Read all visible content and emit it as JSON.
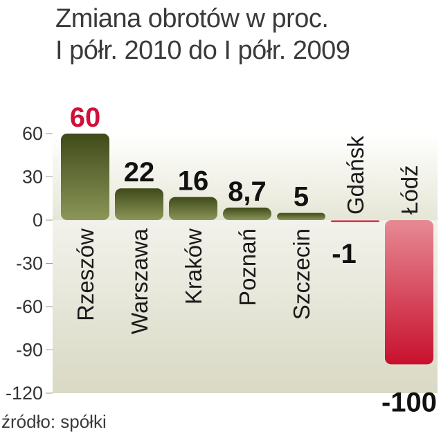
{
  "chart_data": {
    "type": "bar",
    "title": [
      "Zmiana obrotów w proc.",
      "I półr. 2010 do I półr. 2009"
    ],
    "categories": [
      "Rzeszów",
      "Warszawa",
      "Kraków",
      "Poznań",
      "Szczecin",
      "Gdańsk",
      "Łódź"
    ],
    "values": [
      60,
      22,
      16,
      8.7,
      5,
      -1,
      -100
    ],
    "value_labels": [
      "60",
      "22",
      "16",
      "8,7",
      "5",
      "-1",
      "-100"
    ],
    "ylim": [
      -120,
      60
    ],
    "yticks": [
      60,
      30,
      0,
      -30,
      -60,
      -90,
      -120
    ],
    "ytick_labels": [
      "60",
      "30",
      "0",
      "-30",
      "-60",
      "-90",
      "-120"
    ],
    "highlight_color": "#d0103a",
    "positive_color": "#5e6a2c",
    "negative_color": "#d82a4a",
    "grid": false
  },
  "source": "źródło: spółki"
}
